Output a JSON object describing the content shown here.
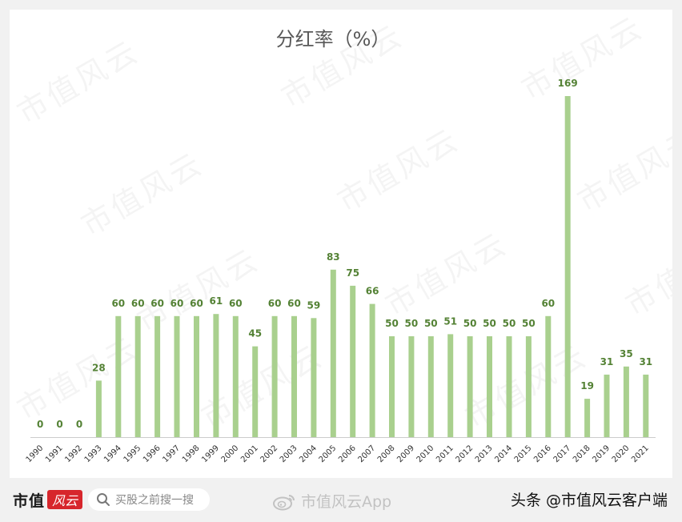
{
  "chart_data": {
    "type": "bar",
    "title": "分红率（%）",
    "categories": [
      "1990",
      "1991",
      "1992",
      "1993",
      "1994",
      "1995",
      "1996",
      "1997",
      "1998",
      "1999",
      "2000",
      "2001",
      "2002",
      "2003",
      "2004",
      "2005",
      "2006",
      "2007",
      "2008",
      "2009",
      "2010",
      "2011",
      "2012",
      "2013",
      "2014",
      "2015",
      "2016",
      "2017",
      "2018",
      "2019",
      "2020",
      "2021"
    ],
    "values": [
      0,
      0,
      0,
      28,
      60,
      60,
      60,
      60,
      60,
      61,
      60,
      45,
      60,
      60,
      59,
      83,
      75,
      66,
      50,
      50,
      50,
      51,
      50,
      50,
      50,
      50,
      60,
      169,
      19,
      31,
      35,
      31
    ],
    "ylim": [
      0,
      180
    ],
    "grid": false,
    "legend": "none",
    "colors": {
      "bar": "#a9d08e",
      "data_label": "#548235",
      "axis": "#cccccc",
      "tick_label": "#333333",
      "title": "#595959"
    }
  },
  "watermark": {
    "text": "市值风云"
  },
  "footer": {
    "brand_text": "市值",
    "brand_seal": "风云",
    "search_placeholder": "买股之前搜一搜",
    "weibo_text": "市值风云App",
    "source_credit": "头条 @市值风云客户端"
  },
  "icons": {
    "search": "search-icon",
    "weibo": "weibo-icon"
  }
}
